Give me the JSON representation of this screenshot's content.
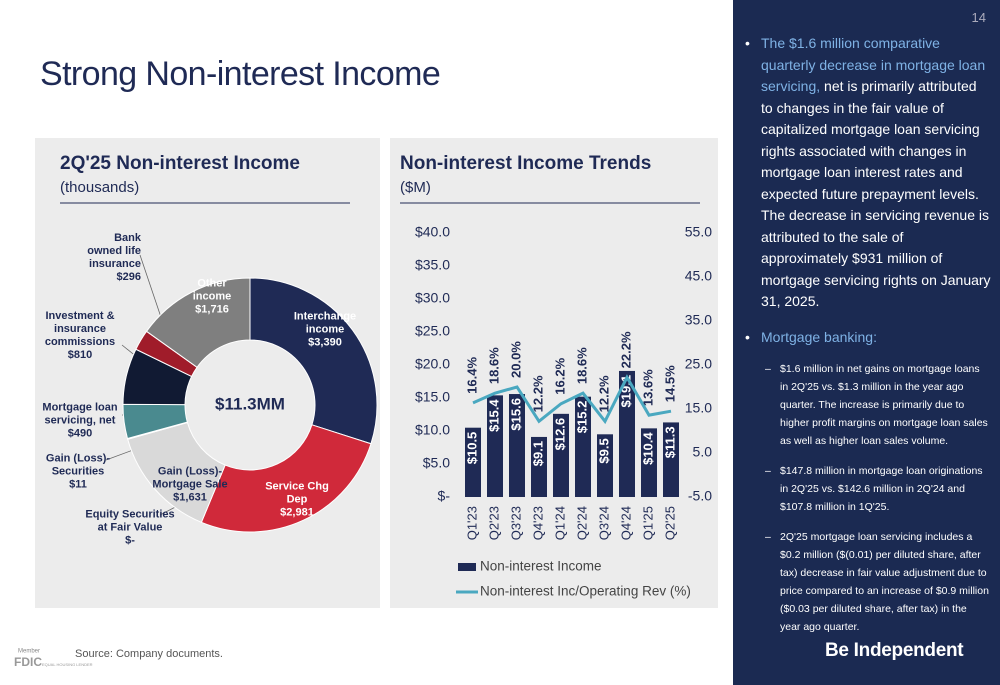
{
  "page": {
    "number": "14",
    "title": "Strong Non-interest Income",
    "source": "Source: Company documents.",
    "brand": "Be Independent",
    "logo": {
      "member": "Member",
      "fdic": "FDIC",
      "housing": "EQUAL HOUSING LENDER"
    }
  },
  "sidebar": {
    "bullets": [
      {
        "highlight": "The $1.6 million comparative quarterly decrease in mortgage loan servicing,",
        "text": "net is primarily attributed to changes in the fair value of capitalized mortgage loan servicing rights associated with changes in mortgage loan interest rates and expected future prepayment levels. The decrease in servicing revenue is attributed to the sale of approximately $931 million of mortgage servicing rights on January 31, 2025."
      },
      {
        "highlight": "Mortgage banking:",
        "items": [
          "$1.6 million in net gains on mortgage loans in 2Q'25 vs. $1.3 million in the year ago quarter. The increase is primarily due to higher profit margins on mortgage loan sales as well as higher loan sales volume.",
          "$147.8 million in mortgage loan originations in 2Q'25 vs. $142.6 million in 2Q'24 and $107.8 million in 1Q'25.",
          "2Q'25 mortgage loan servicing includes a $0.2 million ($(0.01) per diluted share, after tax) decrease in fair value adjustment due to price compared to an increase of $0.9 million ($0.03 per diluted share, after tax) in the year ago quarter."
        ]
      }
    ]
  },
  "chart_data": [
    {
      "type": "donut",
      "title": "2Q'25 Non-interest Income",
      "subtitle": "(thousands)",
      "center_label": "$11.3MM",
      "categories": [
        "Interchange income",
        "Service Chg Dep",
        "Equity Securities at Fair Value",
        "Gain (Loss)- Mortgage Sale",
        "Gain (Loss)- Securities",
        "Mortgage loan servicing, net",
        "Investment & insurance commissions",
        "Bank owned life insurance",
        "Other income"
      ],
      "values": [
        3390,
        2981,
        0,
        1631,
        11,
        490,
        810,
        296,
        1716
      ],
      "value_labels": [
        "$3,390",
        "$2,981",
        "$-",
        "$1,631",
        "$11",
        "$490",
        "$810",
        "$296",
        "$1,716"
      ],
      "colors": [
        "#1f2a55",
        "#d0293a",
        "#bfbfbf",
        "#d9d9d9",
        "#a6a6a6",
        "#4a8a8f",
        "#111a33",
        "#a01c2a",
        "#7f7f7f"
      ]
    },
    {
      "type": "bar_line",
      "title": "Non-interest Income Trends",
      "subtitle": "($M)",
      "categories": [
        "Q1'23",
        "Q2'23",
        "Q3'23",
        "Q4'23",
        "Q1'24",
        "Q2'24",
        "Q3'24",
        "Q4'24",
        "Q1'25",
        "Q2'25"
      ],
      "series": [
        {
          "name": "Non-interest Income",
          "type": "bar",
          "color": "#1f2a55",
          "values": [
            10.5,
            15.4,
            15.6,
            9.1,
            12.6,
            15.2,
            9.5,
            19.1,
            10.4,
            11.3
          ],
          "value_labels": [
            "$10.5",
            "$15.4",
            "$15.6",
            "$9.1",
            "$12.6",
            "$15.2",
            "$9.5",
            "$19.1",
            "$10.4",
            "$11.3"
          ]
        },
        {
          "name": "Non-interest Inc/Operating Rev (%)",
          "type": "line",
          "axis": "y2",
          "color": "#4aa8c0",
          "values": [
            16.4,
            18.6,
            20.0,
            12.2,
            16.2,
            18.6,
            12.2,
            22.2,
            13.6,
            14.5
          ],
          "value_labels": [
            "16.4%",
            "18.6%",
            "20.0%",
            "12.2%",
            "16.2%",
            "18.6%",
            "12.2%",
            "22.2%",
            "13.6%",
            "14.5%"
          ]
        }
      ],
      "ylim": [
        0,
        40
      ],
      "yticks": [
        {
          "value": 0,
          "label": "$-"
        },
        {
          "value": 5,
          "label": "$5.0"
        },
        {
          "value": 10,
          "label": "$10.0"
        },
        {
          "value": 15,
          "label": "$15.0"
        },
        {
          "value": 20,
          "label": "$20.0"
        },
        {
          "value": 25,
          "label": "$25.0"
        },
        {
          "value": 30,
          "label": "$30.0"
        },
        {
          "value": 35,
          "label": "$35.0"
        },
        {
          "value": 40,
          "label": "$40.0"
        }
      ],
      "y2lim": [
        -5,
        55
      ],
      "y2ticks": [
        {
          "value": -5,
          "label": "-5.0"
        },
        {
          "value": 5,
          "label": "5.0"
        },
        {
          "value": 15,
          "label": "15.0"
        },
        {
          "value": 25,
          "label": "25.0"
        },
        {
          "value": 35,
          "label": "35.0"
        },
        {
          "value": 45,
          "label": "45.0"
        },
        {
          "value": 55,
          "label": "55.0"
        }
      ]
    }
  ]
}
